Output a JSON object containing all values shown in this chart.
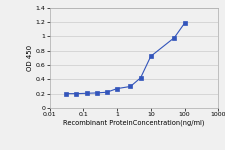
{
  "x": [
    0.0313,
    0.0625,
    0.125,
    0.25,
    0.5,
    1.0,
    2.5,
    5.0,
    10.0,
    50.0,
    100.0
  ],
  "y": [
    0.2,
    0.2,
    0.205,
    0.21,
    0.22,
    0.27,
    0.3,
    0.42,
    0.72,
    0.98,
    1.18
  ],
  "line_color": "#3355bb",
  "marker_color": "#3355bb",
  "marker_style": "s",
  "marker_size": 2.5,
  "line_width": 0.8,
  "xlabel": "Recombinant ProteinConcentration(ng/ml)",
  "ylabel": "OD 450",
  "xlim": [
    0.01,
    1000
  ],
  "ylim": [
    0,
    1.4
  ],
  "yticks": [
    0,
    0.2,
    0.4,
    0.6,
    0.8,
    1.0,
    1.2,
    1.4
  ],
  "ytick_labels": [
    "0",
    "0.2",
    "0.4",
    "0.6",
    "0.8",
    "1",
    "1.2",
    "1.4"
  ],
  "xticks": [
    0.01,
    0.1,
    1,
    10,
    100,
    1000
  ],
  "xtick_labels": [
    "0.01",
    "0.1",
    "1",
    "10",
    "100",
    "1000"
  ],
  "xlabel_fontsize": 4.8,
  "ylabel_fontsize": 5.0,
  "tick_fontsize": 4.5,
  "grid_color": "#cccccc",
  "background_color": "#f0f0f0"
}
